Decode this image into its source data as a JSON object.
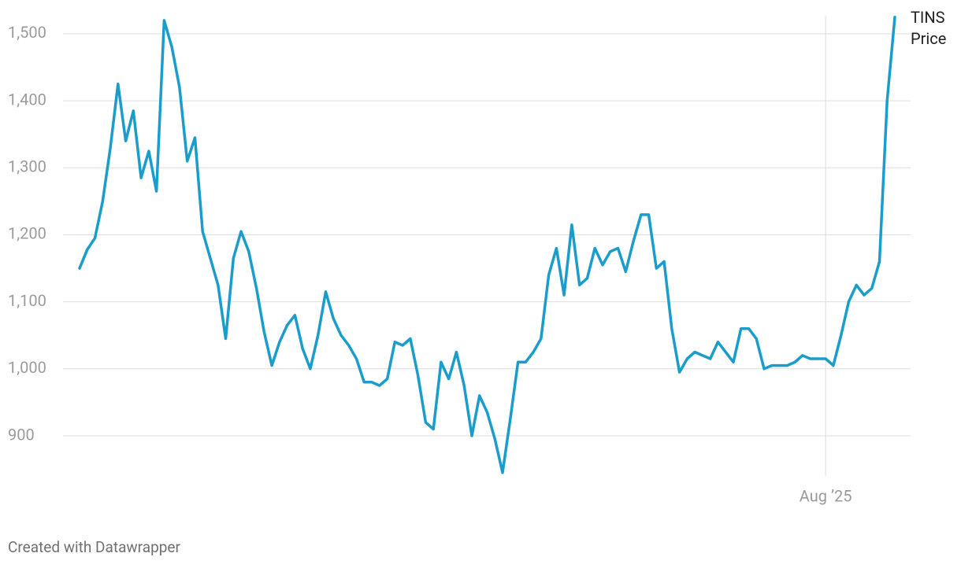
{
  "chart_data": {
    "type": "line",
    "footer": "Created with Datawrapper",
    "categories": [
      null,
      null,
      null,
      null,
      null,
      null,
      null,
      null,
      null,
      null,
      null,
      null,
      null,
      null,
      null,
      null,
      null,
      null,
      null,
      null,
      null,
      null,
      null,
      null,
      null,
      null,
      null,
      null,
      null,
      null,
      null,
      null,
      null,
      null,
      null,
      null,
      null,
      null,
      null,
      null,
      null,
      null,
      null,
      null,
      null,
      null,
      null,
      null,
      null,
      null,
      null,
      null,
      null,
      null,
      null,
      null,
      null,
      null,
      null,
      null,
      null,
      null,
      null,
      null,
      null,
      null,
      null,
      null,
      null,
      null,
      null,
      null,
      null,
      null,
      null,
      null,
      null,
      null,
      null,
      null,
      null,
      null,
      null,
      null,
      null,
      null,
      null,
      null,
      null,
      null,
      null,
      null,
      null,
      null,
      null,
      null,
      null,
      "Aug ’25",
      null,
      null,
      null,
      null,
      null,
      null,
      null,
      null,
      null
    ],
    "series": [
      {
        "name": "TINS Price",
        "color": "#1b9dcb",
        "values": [
          1150,
          1178,
          1195,
          1250,
          1330,
          1425,
          1340,
          1385,
          1285,
          1325,
          1265,
          1520,
          1480,
          1420,
          1310,
          1345,
          1205,
          1165,
          1125,
          1045,
          1165,
          1205,
          1175,
          1120,
          1055,
          1005,
          1040,
          1065,
          1080,
          1030,
          1000,
          1050,
          1115,
          1075,
          1050,
          1035,
          1015,
          980,
          980,
          975,
          985,
          1040,
          1035,
          1045,
          990,
          920,
          910,
          1010,
          985,
          1025,
          975,
          900,
          960,
          935,
          895,
          845,
          925,
          1010,
          1010,
          1025,
          1045,
          1140,
          1180,
          1110,
          1215,
          1125,
          1135,
          1180,
          1155,
          1175,
          1180,
          1145,
          1190,
          1230,
          1230,
          1150,
          1160,
          1060,
          995,
          1015,
          1025,
          1020,
          1015,
          1040,
          1025,
          1010,
          1060,
          1060,
          1045,
          1000,
          1005,
          1005,
          1005,
          1010,
          1020,
          1015,
          1015,
          1015,
          1005,
          1050,
          1100,
          1125,
          1110,
          1120,
          1160,
          1400,
          1525
        ]
      }
    ],
    "ylim": [
      830,
      1530
    ],
    "yticks": [
      {
        "value": 900,
        "label": "900"
      },
      {
        "value": 1000,
        "label": "1,000"
      },
      {
        "value": 1100,
        "label": "1,100"
      },
      {
        "value": 1200,
        "label": "1,200"
      },
      {
        "value": 1300,
        "label": "1,300"
      },
      {
        "value": 1400,
        "label": "1,400"
      },
      {
        "value": 1500,
        "label": "1,500"
      }
    ],
    "grid": true
  }
}
